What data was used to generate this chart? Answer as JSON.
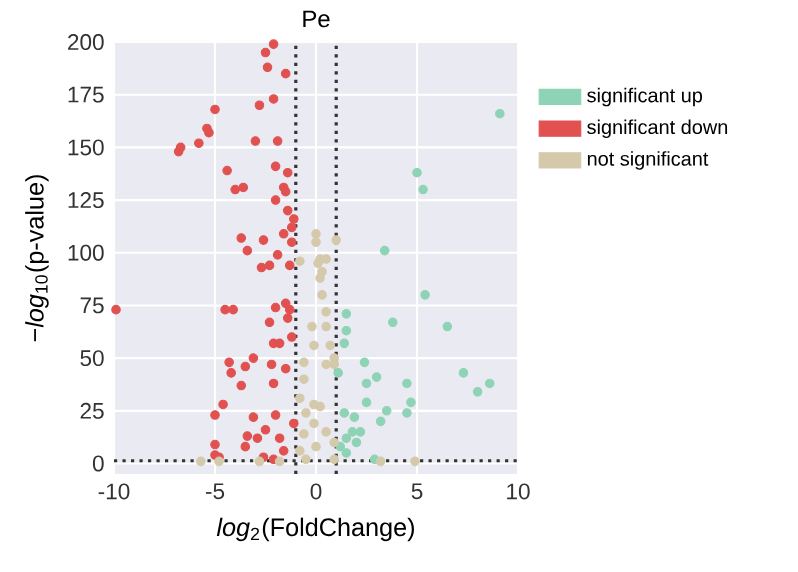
{
  "chart_data": {
    "type": "scatter",
    "title": "Pe",
    "xlabel": "*log*$_{2}$(FoldChange)",
    "ylabel": "−*log*$_{10}$(p-value)",
    "xlim": [
      -10,
      10
    ],
    "ylim": [
      -5,
      200
    ],
    "xticks": [
      -10,
      -5,
      0,
      5,
      10
    ],
    "yticks": [
      0,
      25,
      50,
      75,
      100,
      125,
      150,
      175,
      200
    ],
    "grid": true,
    "legend": "right",
    "marker": "circle",
    "ref_lines": [
      {
        "axis": "x",
        "value": -1,
        "line_style": "dotted",
        "color": "#333333"
      },
      {
        "axis": "x",
        "value": 1,
        "line_style": "dotted",
        "color": "#333333"
      },
      {
        "axis": "y",
        "value": 1.3,
        "line_style": "dotted",
        "color": "#333333"
      }
    ],
    "series": [
      {
        "name": "significant up",
        "color": "#8fd3b6",
        "x": [
          9.1,
          5.0,
          5.3,
          3.4,
          5.4,
          3.8,
          6.5,
          1.5,
          1.5,
          7.3,
          8.6,
          8.0,
          4.5,
          4.7,
          4.5,
          3.0,
          2.5,
          2.4,
          1.4,
          1.1,
          3.5,
          3.2,
          1.9,
          2.5,
          1.4,
          1.8,
          1.5,
          2.2,
          2.9,
          1.5,
          1.2,
          2.0
        ],
        "values": [
          166,
          138,
          130,
          101,
          80,
          67,
          65,
          71,
          63,
          43,
          38,
          34,
          38,
          29,
          24,
          41,
          38,
          48,
          57,
          43,
          25,
          20,
          22,
          29,
          24,
          15,
          12,
          15,
          2,
          5,
          8,
          10
        ]
      },
      {
        "name": "significant down",
        "color": "#e05150",
        "x": [
          -2.1,
          -2.5,
          -2.4,
          -1.5,
          -5.0,
          -2.8,
          -2.1,
          -5.4,
          -5.3,
          -6.7,
          -6.8,
          -5.8,
          -3.0,
          -1.9,
          -2.0,
          -4.4,
          -1.4,
          -4.0,
          -3.6,
          -1.6,
          -1.5,
          -2.0,
          -1.4,
          -1.1,
          -1.2,
          -1.6,
          -3.7,
          -2.6,
          -1.2,
          -3.4,
          -1.9,
          -2.3,
          -2.7,
          -1.3,
          -9.9,
          -4.5,
          -4.1,
          -2.0,
          -1.5,
          -1.3,
          -2.3,
          -1.4,
          -2.1,
          -1.8,
          -1.2,
          -3.1,
          -4.3,
          -3.5,
          -4.2,
          -3.7,
          -2.2,
          -1.5,
          -2.1,
          -4.6,
          -5.0,
          -3.1,
          -2.0,
          -2.5,
          -3.4,
          -2.9,
          -5.0,
          -3.5,
          -5.0,
          -4.8,
          -2.6,
          -2.1,
          -1.6,
          -1.8,
          -1.1
        ],
        "values": [
          199,
          195,
          188,
          185,
          168,
          170,
          173,
          159,
          157,
          150,
          148,
          152,
          153,
          153,
          141,
          139,
          138,
          130,
          131,
          131,
          129,
          125,
          120,
          116,
          112,
          109,
          107,
          106,
          105,
          101,
          99,
          94,
          93,
          94,
          73,
          73,
          73,
          74,
          76,
          73,
          67,
          69,
          57,
          57,
          60,
          50,
          48,
          46,
          43,
          37,
          47,
          45,
          38,
          28,
          23,
          22,
          23,
          16,
          13,
          12,
          9,
          8,
          4,
          3,
          3,
          2,
          6,
          12,
          19
        ]
      },
      {
        "name": "not significant",
        "color": "#d5c9ab",
        "x": [
          0.0,
          0.0,
          1.0,
          0.5,
          0.2,
          -0.8,
          0.3,
          0.1,
          0.2,
          0.3,
          0.5,
          0.5,
          0.7,
          -0.2,
          -0.1,
          0.9,
          -0.6,
          -0.6,
          -0.8,
          -0.5,
          -0.1,
          0.2,
          -0.1,
          -0.6,
          0.5,
          0.9,
          0.0,
          -0.8,
          -5.7,
          -4.8,
          -2.8,
          -1.8,
          -0.5,
          0.9,
          3.2,
          4.9,
          0.5,
          0.9
        ],
        "values": [
          109,
          105,
          106,
          97,
          97,
          96,
          91,
          95,
          88,
          80,
          72,
          65,
          56,
          65,
          56,
          47,
          48,
          40,
          31,
          24,
          28,
          27,
          19,
          14,
          15,
          10,
          8,
          6,
          1,
          1,
          1,
          1,
          2,
          2,
          1,
          1,
          47,
          50
        ]
      }
    ]
  }
}
